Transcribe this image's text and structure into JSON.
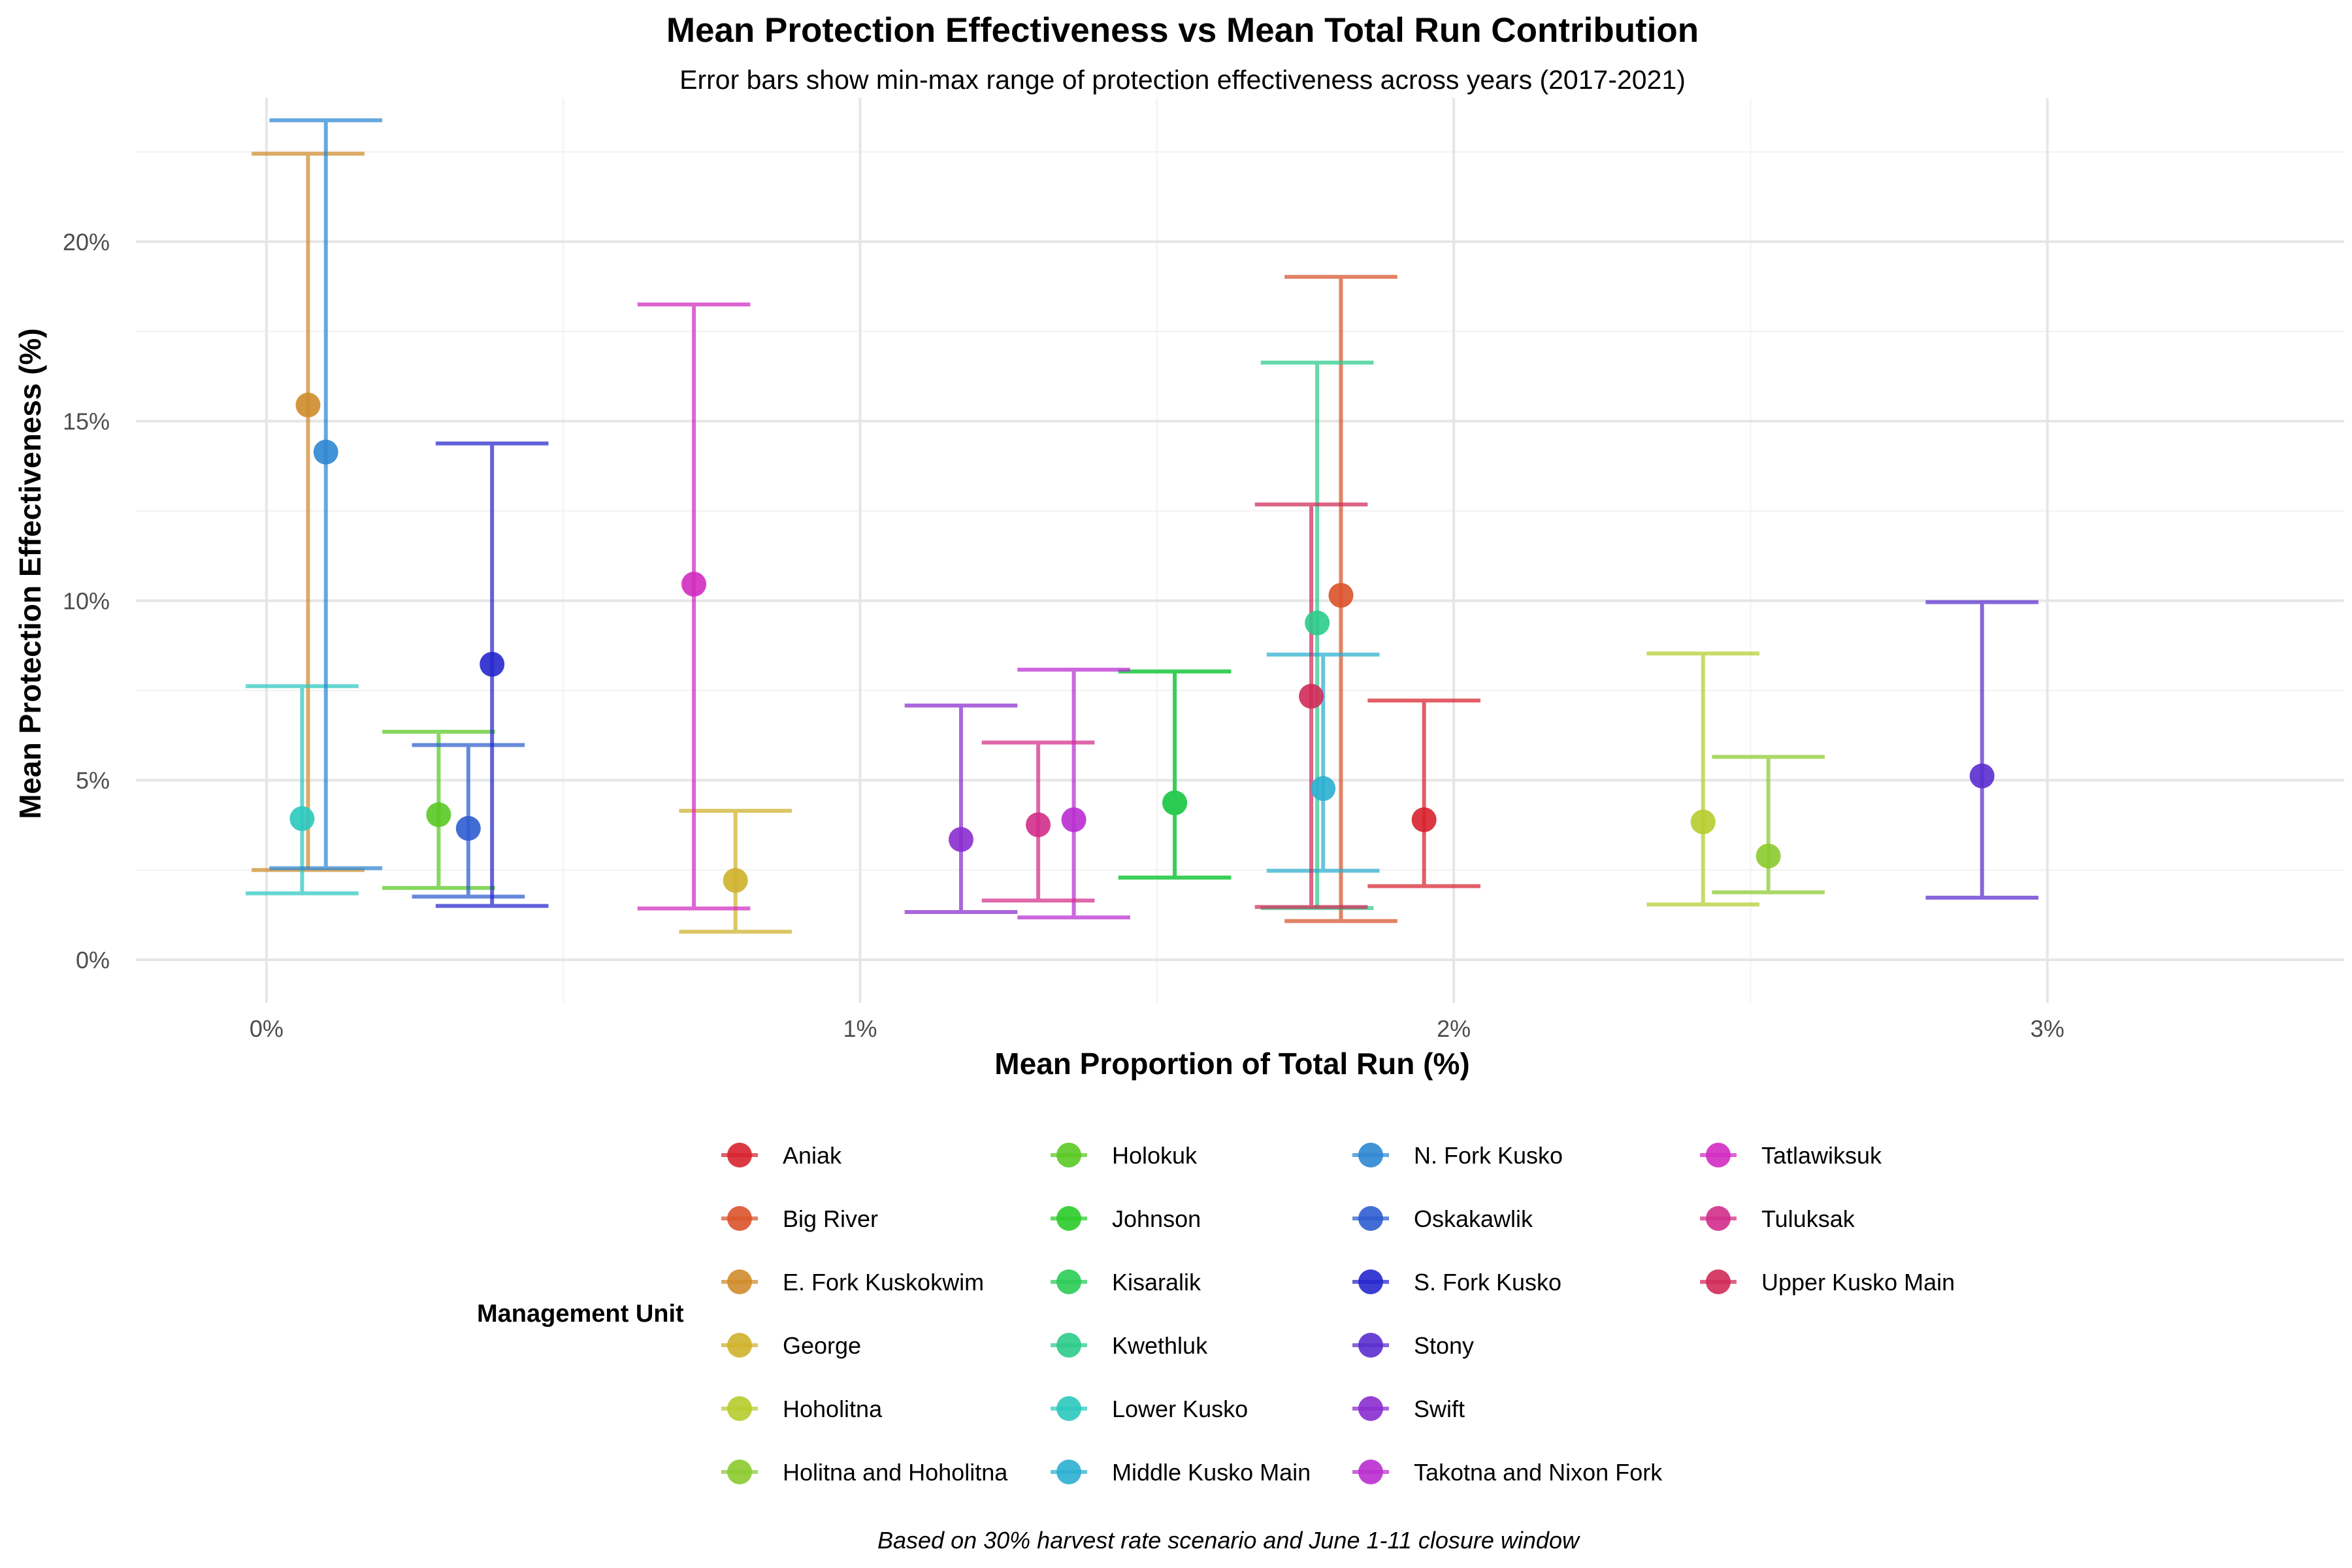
{
  "chart_data": {
    "type": "scatter",
    "title": "Mean Protection Effectiveness vs Mean Total Run Contribution",
    "subtitle": "Error bars show min-max range of protection effectiveness across years (2017-2021)",
    "xlabel": "Mean Proportion of Total Run (%)",
    "ylabel": "Mean Protection Effectiveness (%)",
    "caption": "Based on 30% harvest rate scenario and June 1-11 closure window",
    "xlim": [
      -0.0022,
      0.035
    ],
    "ylim": [
      -0.012,
      0.24
    ],
    "x_ticks": [
      0,
      0.01,
      0.02,
      0.03
    ],
    "x_tick_labels": [
      "0%",
      "1%",
      "2%",
      "3%"
    ],
    "y_ticks": [
      0,
      0.05,
      0.1,
      0.15,
      0.2
    ],
    "y_tick_labels": [
      "0%",
      "5%",
      "10%",
      "15%",
      "20%"
    ],
    "grid": true,
    "legend_title": "Management Unit",
    "legend_position": "bottom",
    "points": [
      {
        "unit": "Aniak",
        "x": 0.0195,
        "y": 0.039,
        "ymin": 0.0205,
        "ymax": 0.0722,
        "color": "#D7222E"
      },
      {
        "unit": "Big River",
        "x": 0.0181,
        "y": 0.1015,
        "ymin": 0.0108,
        "ymax": 0.1902,
        "color": "#D9532A"
      },
      {
        "unit": "E. Fork Kuskokwim",
        "x": 0.0007,
        "y": 0.1545,
        "ymin": 0.025,
        "ymax": 0.2245,
        "color": "#CF8C2C"
      },
      {
        "unit": "George",
        "x": 0.0079,
        "y": 0.0221,
        "ymin": 0.0078,
        "ymax": 0.0415,
        "color": "#CFB12B"
      },
      {
        "unit": "Hoholitna",
        "x": 0.0242,
        "y": 0.0384,
        "ymin": 0.0154,
        "ymax": 0.0853,
        "color": "#B6CC2E"
      },
      {
        "unit": "Holitna and Hoholitna",
        "x": 0.0253,
        "y": 0.0289,
        "ymin": 0.0188,
        "ymax": 0.0565,
        "color": "#8CCA2F"
      },
      {
        "unit": "Holokuk",
        "x": 0.0029,
        "y": 0.0404,
        "ymin": 0.02,
        "ymax": 0.0635,
        "color": "#59C924"
      },
      {
        "unit": "Johnson",
        "x": 0.0153,
        "y": 0.0437,
        "ymin": 0.0229,
        "ymax": 0.0803,
        "color": "#2BCB2A"
      },
      {
        "unit": "Kisaralik",
        "x": 0.0153,
        "y": 0.0437,
        "ymin": 0.0229,
        "ymax": 0.0803,
        "color": "#2ACB55"
      },
      {
        "unit": "Kwethluk",
        "x": 0.0177,
        "y": 0.0938,
        "ymin": 0.0144,
        "ymax": 0.1663,
        "color": "#2CCB8B"
      },
      {
        "unit": "Lower Kusko",
        "x": 0.0006,
        "y": 0.0393,
        "ymin": 0.0185,
        "ymax": 0.0762,
        "color": "#2BC9BE"
      },
      {
        "unit": "Middle Kusko Main",
        "x": 0.0178,
        "y": 0.0477,
        "ymin": 0.0248,
        "ymax": 0.085,
        "color": "#2BAFD0"
      },
      {
        "unit": "N. Fork Kusko",
        "x": 0.001,
        "y": 0.1414,
        "ymin": 0.0255,
        "ymax": 0.2338,
        "color": "#2D87D2"
      },
      {
        "unit": "Oskakawlik",
        "x": 0.0034,
        "y": 0.0366,
        "ymin": 0.0176,
        "ymax": 0.0598,
        "color": "#2E5DCF"
      },
      {
        "unit": "S. Fork Kusko",
        "x": 0.0038,
        "y": 0.0823,
        "ymin": 0.015,
        "ymax": 0.1438,
        "color": "#2627CC"
      },
      {
        "unit": "Stony",
        "x": 0.0289,
        "y": 0.0512,
        "ymin": 0.0173,
        "ymax": 0.0996,
        "color": "#5A2ECE"
      },
      {
        "unit": "Swift",
        "x": 0.0117,
        "y": 0.0335,
        "ymin": 0.0133,
        "ymax": 0.0708,
        "color": "#8A2ECF"
      },
      {
        "unit": "Takotna and Nixon Fork",
        "x": 0.0136,
        "y": 0.039,
        "ymin": 0.0118,
        "ymax": 0.0808,
        "color": "#B92ED0"
      },
      {
        "unit": "Tatlawiksuk",
        "x": 0.0072,
        "y": 0.1046,
        "ymin": 0.0143,
        "ymax": 0.1825,
        "color": "#D12BC1"
      },
      {
        "unit": "Tuluksak",
        "x": 0.013,
        "y": 0.0376,
        "ymin": 0.0165,
        "ymax": 0.0605,
        "color": "#D22E8A"
      },
      {
        "unit": "Upper Kusko Main",
        "x": 0.0176,
        "y": 0.0734,
        "ymin": 0.0147,
        "ymax": 0.1268,
        "color": "#D02A58"
      }
    ]
  }
}
